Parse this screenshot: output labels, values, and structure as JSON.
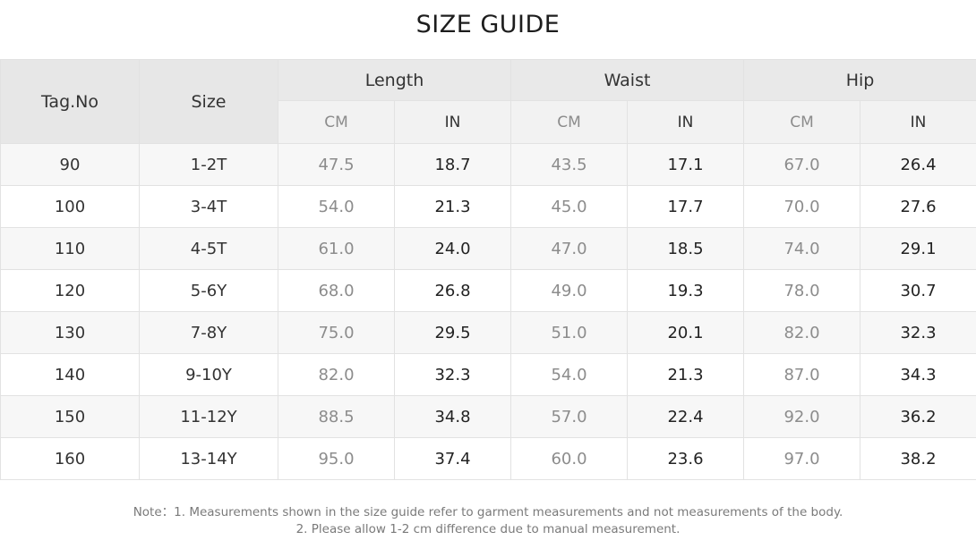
{
  "title": "SIZE GUIDE",
  "headers": {
    "tag_no": "Tag.No",
    "size": "Size",
    "groups": [
      "Length",
      "Waist",
      "Hip"
    ],
    "cm": "CM",
    "in": "IN"
  },
  "rows": [
    {
      "tag": "90",
      "size": "1-2T",
      "length_cm": "47.5",
      "length_in": "18.7",
      "waist_cm": "43.5",
      "waist_in": "17.1",
      "hip_cm": "67.0",
      "hip_in": "26.4"
    },
    {
      "tag": "100",
      "size": "3-4T",
      "length_cm": "54.0",
      "length_in": "21.3",
      "waist_cm": "45.0",
      "waist_in": "17.7",
      "hip_cm": "70.0",
      "hip_in": "27.6"
    },
    {
      "tag": "110",
      "size": "4-5T",
      "length_cm": "61.0",
      "length_in": "24.0",
      "waist_cm": "47.0",
      "waist_in": "18.5",
      "hip_cm": "74.0",
      "hip_in": "29.1"
    },
    {
      "tag": "120",
      "size": "5-6Y",
      "length_cm": "68.0",
      "length_in": "26.8",
      "waist_cm": "49.0",
      "waist_in": "19.3",
      "hip_cm": "78.0",
      "hip_in": "30.7"
    },
    {
      "tag": "130",
      "size": "7-8Y",
      "length_cm": "75.0",
      "length_in": "29.5",
      "waist_cm": "51.0",
      "waist_in": "20.1",
      "hip_cm": "82.0",
      "hip_in": "32.3"
    },
    {
      "tag": "140",
      "size": "9-10Y",
      "length_cm": "82.0",
      "length_in": "32.3",
      "waist_cm": "54.0",
      "waist_in": "21.3",
      "hip_cm": "87.0",
      "hip_in": "34.3"
    },
    {
      "tag": "150",
      "size": "11-12Y",
      "length_cm": "88.5",
      "length_in": "34.8",
      "waist_cm": "57.0",
      "waist_in": "22.4",
      "hip_cm": "92.0",
      "hip_in": "36.2"
    },
    {
      "tag": "160",
      "size": "13-14Y",
      "length_cm": "95.0",
      "length_in": "37.4",
      "waist_cm": "60.0",
      "waist_in": "23.6",
      "hip_cm": "97.0",
      "hip_in": "38.2"
    }
  ],
  "note": {
    "line1": "Note：1. Measurements shown in the size guide refer to garment measurements and not measurements of the body.",
    "line2": "2. Please allow 1-2 cm difference due to manual measurement."
  }
}
